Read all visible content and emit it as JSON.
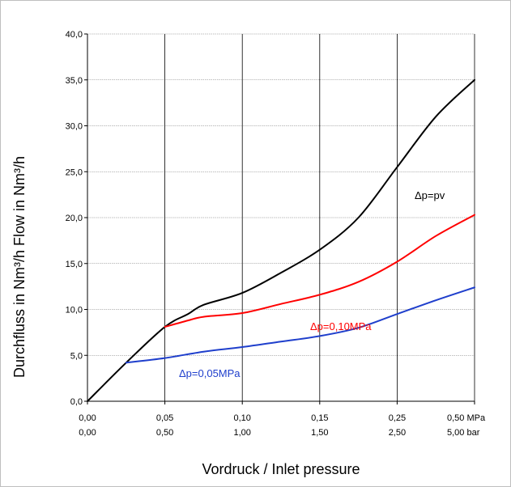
{
  "chart_data": {
    "type": "line",
    "xlabel": "Vordruck / Inlet pressure",
    "ylabel": "Durchfluss in Nm³/h   Flow in Nm³/h",
    "ylim": [
      0,
      40
    ],
    "yticks": [
      "0,0",
      "5,0",
      "10,0",
      "15,0",
      "20,0",
      "25,0",
      "30,0",
      "35,0",
      "40,0"
    ],
    "x_categories_mpa": [
      "0,00",
      "0,05",
      "0,10",
      "0,15",
      "0,25",
      "0,50 MPa"
    ],
    "x_categories_bar": [
      "0,00",
      "0,50",
      "1,00",
      "1,50",
      "2,50",
      "5,00 bar"
    ],
    "grid": true,
    "series": [
      {
        "name": "Δp=pv",
        "color": "#000000",
        "points": [
          [
            0,
            0
          ],
          [
            0.5,
            4.2
          ],
          [
            1,
            8.1
          ],
          [
            1.3,
            9.5
          ],
          [
            1.5,
            10.5
          ],
          [
            2,
            11.8
          ],
          [
            2.5,
            14
          ],
          [
            3,
            16.5
          ],
          [
            3.5,
            20
          ],
          [
            4,
            25.5
          ],
          [
            4.5,
            31
          ],
          [
            5,
            35
          ]
        ]
      },
      {
        "name": "Δp=0,10MPa",
        "color": "#ff0000",
        "points": [
          [
            1,
            8.1
          ],
          [
            1.3,
            8.8
          ],
          [
            1.5,
            9.2
          ],
          [
            2,
            9.6
          ],
          [
            2.5,
            10.6
          ],
          [
            3,
            11.6
          ],
          [
            3.5,
            13
          ],
          [
            4,
            15.2
          ],
          [
            4.5,
            18
          ],
          [
            5,
            20.3
          ]
        ]
      },
      {
        "name": "Δp=0,05MPa",
        "color": "#1f3fcc",
        "points": [
          [
            0.5,
            4.2
          ],
          [
            1,
            4.7
          ],
          [
            1.5,
            5.4
          ],
          [
            2,
            5.9
          ],
          [
            2.5,
            6.5
          ],
          [
            3,
            7.1
          ],
          [
            3.5,
            8
          ],
          [
            4,
            9.5
          ],
          [
            4.5,
            11
          ],
          [
            5,
            12.4
          ]
        ]
      }
    ]
  }
}
